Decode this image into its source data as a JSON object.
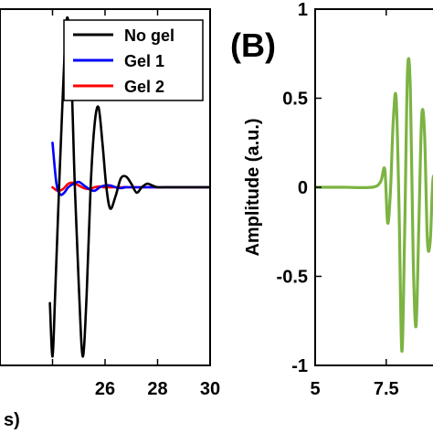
{
  "chart_data": [
    {
      "type": "line",
      "panel": "A",
      "xlim": [
        22,
        30
      ],
      "ylim": [
        -1,
        1
      ],
      "xticks": [
        "",
        "26",
        "28",
        "30"
      ],
      "xtick_values": [
        24,
        26,
        28,
        30
      ],
      "xlabel": "s)",
      "legend": {
        "placement": "top-right",
        "entries": [
          "No gel",
          "Gel 1",
          "Gel 2"
        ]
      },
      "series": [
        {
          "name": "No gel",
          "color": "#000000",
          "x": [
            23.9,
            24.0,
            24.1,
            24.25,
            24.4,
            24.55,
            24.7,
            24.85,
            25.0,
            25.15,
            25.3,
            25.45,
            25.6,
            25.75,
            25.9,
            26.05,
            26.2,
            26.4,
            26.6,
            26.8,
            27.0,
            27.2,
            27.4,
            27.6,
            27.8,
            28.0,
            28.3,
            30.0
          ],
          "y": [
            -0.65,
            -0.95,
            -0.6,
            0.0,
            0.55,
            0.95,
            0.7,
            0.0,
            -0.55,
            -0.95,
            -0.6,
            0.0,
            0.35,
            0.45,
            0.25,
            0.0,
            -0.12,
            -0.05,
            0.05,
            0.06,
            0.02,
            -0.03,
            0.0,
            0.02,
            0.01,
            0.0,
            0.0,
            0.0
          ]
        },
        {
          "name": "Gel 1",
          "color": "#0000ff",
          "x": [
            24.0,
            24.15,
            24.3,
            24.45,
            24.6,
            24.8,
            25.0,
            25.2,
            25.4,
            25.6,
            25.8,
            26.0,
            26.2,
            26.4,
            26.6,
            26.8,
            27.0,
            30.0
          ],
          "y": [
            0.25,
            0.02,
            -0.04,
            -0.03,
            0.0,
            0.02,
            0.03,
            0.01,
            -0.01,
            -0.02,
            0.0,
            0.01,
            0.01,
            0.0,
            -0.005,
            0.0,
            0.0,
            0.0
          ]
        },
        {
          "name": "Gel 2",
          "color": "#ff0000",
          "x": [
            24.0,
            24.2,
            24.4,
            24.6,
            24.8,
            25.0,
            25.2,
            25.4,
            25.6,
            25.8,
            26.0,
            26.3,
            30.0
          ],
          "y": [
            0.0,
            -0.02,
            -0.01,
            0.02,
            0.025,
            0.01,
            -0.005,
            -0.01,
            0.0,
            0.005,
            0.0,
            0.0,
            0.0
          ]
        }
      ]
    },
    {
      "type": "line",
      "panel": "B",
      "panel_label": "(B)",
      "xlim": [
        5,
        9.5
      ],
      "ylim": [
        -1,
        1
      ],
      "xticks": [
        "5",
        "7.5"
      ],
      "xtick_values": [
        5,
        7.5
      ],
      "yticks": [
        "-1",
        "-0.5",
        "0",
        "0.5",
        "1"
      ],
      "ytick_values": [
        -1,
        -0.5,
        0,
        0.5,
        1
      ],
      "ylabel": "Amplitude (a.u.)",
      "series": [
        {
          "color": "#7cb342",
          "x": [
            5.0,
            6.0,
            7.0,
            7.3,
            7.45,
            7.55,
            7.65,
            7.75,
            7.85,
            7.95,
            8.05,
            8.15,
            8.25,
            8.35,
            8.45,
            8.55,
            8.65,
            8.75,
            8.85,
            8.95,
            9.05,
            9.15,
            9.3,
            9.5
          ],
          "y": [
            0.0,
            0.0,
            0.0,
            0.03,
            0.1,
            -0.2,
            -0.02,
            0.38,
            0.5,
            -0.1,
            -0.92,
            -0.25,
            0.65,
            0.55,
            -0.4,
            -0.78,
            -0.2,
            0.4,
            0.3,
            -0.3,
            -0.3,
            0.05,
            0.0,
            0.0
          ]
        }
      ]
    }
  ]
}
